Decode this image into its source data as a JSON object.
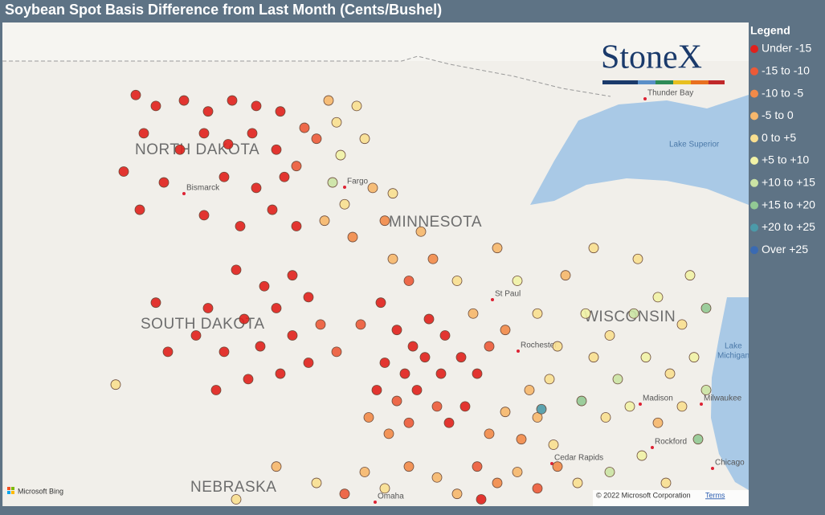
{
  "title": "Soybean Spot Basis Difference from Last Month (Cents/Bushel)",
  "logo": "StoneX",
  "legend": {
    "title": "Legend",
    "classes": [
      {
        "label": "Under -15",
        "color": "#e0201c"
      },
      {
        "label": "-15 to -10",
        "color": "#ec5a38"
      },
      {
        "label": "-10 to -5",
        "color": "#f28a48"
      },
      {
        "label": "-5 to 0",
        "color": "#f6b76c"
      },
      {
        "label": "0 to +5",
        "color": "#f8df90"
      },
      {
        "label": "+5 to +10",
        "color": "#f1f2a6"
      },
      {
        "label": "+10 to +15",
        "color": "#cbe3a4"
      },
      {
        "label": "+15 to +20",
        "color": "#92c994"
      },
      {
        "label": "+20 to +25",
        "color": "#4b9aa9"
      },
      {
        "label": "Over +25",
        "color": "#3a6ab2"
      }
    ]
  },
  "map_labels": [
    "NORTH DAKOTA",
    "SOUTH DAKOTA",
    "MINNESOTA",
    "WISCONSIN",
    "NEBRASKA",
    "Bismarck",
    "Fargo",
    "St Paul",
    "Rochester",
    "Madison",
    "Milwaukee",
    "Rockford",
    "Cedar Rapids",
    "Omaha",
    "Chicago",
    "Thunder Bay",
    "Lake Superior",
    "Lake",
    "Michigan"
  ],
  "attribution": {
    "provider": "Microsoft Bing",
    "copyright": "© 2022 Microsoft Corporation",
    "terms": "Terms"
  },
  "points": [
    {
      "lon": -102.0,
      "lat": 48.6,
      "class": 0
    },
    {
      "lon": -101.5,
      "lat": 48.4,
      "class": 0
    },
    {
      "lon": -100.8,
      "lat": 48.5,
      "class": 0
    },
    {
      "lon": -100.2,
      "lat": 48.3,
      "class": 0
    },
    {
      "lon": -99.6,
      "lat": 48.5,
      "class": 0
    },
    {
      "lon": -99.0,
      "lat": 48.4,
      "class": 0
    },
    {
      "lon": -98.4,
      "lat": 48.3,
      "class": 0
    },
    {
      "lon": -101.8,
      "lat": 47.9,
      "class": 0
    },
    {
      "lon": -100.9,
      "lat": 47.6,
      "class": 0
    },
    {
      "lon": -100.3,
      "lat": 47.9,
      "class": 0
    },
    {
      "lon": -99.7,
      "lat": 47.7,
      "class": 0
    },
    {
      "lon": -99.1,
      "lat": 47.9,
      "class": 0
    },
    {
      "lon": -98.5,
      "lat": 47.6,
      "class": 0
    },
    {
      "lon": -102.3,
      "lat": 47.2,
      "class": 0
    },
    {
      "lon": -101.3,
      "lat": 47.0,
      "class": 0
    },
    {
      "lon": -99.8,
      "lat": 47.1,
      "class": 0
    },
    {
      "lon": -99.0,
      "lat": 46.9,
      "class": 0
    },
    {
      "lon": -98.3,
      "lat": 47.1,
      "class": 0
    },
    {
      "lon": -101.9,
      "lat": 46.5,
      "class": 0
    },
    {
      "lon": -100.3,
      "lat": 46.4,
      "class": 0
    },
    {
      "lon": -99.4,
      "lat": 46.2,
      "class": 0
    },
    {
      "lon": -98.6,
      "lat": 46.5,
      "class": 0
    },
    {
      "lon": -98.0,
      "lat": 46.2,
      "class": 0
    },
    {
      "lon": -97.8,
      "lat": 48.0,
      "class": 1
    },
    {
      "lon": -98.0,
      "lat": 47.3,
      "class": 1
    },
    {
      "lon": -97.2,
      "lat": 48.5,
      "class": 3
    },
    {
      "lon": -97.0,
      "lat": 48.1,
      "class": 4
    },
    {
      "lon": -96.9,
      "lat": 47.5,
      "class": 5
    },
    {
      "lon": -97.1,
      "lat": 47.0,
      "class": 6
    },
    {
      "lon": -96.8,
      "lat": 46.6,
      "class": 4
    },
    {
      "lon": -97.3,
      "lat": 46.3,
      "class": 3
    },
    {
      "lon": -96.6,
      "lat": 46.0,
      "class": 2
    },
    {
      "lon": -96.3,
      "lat": 47.8,
      "class": 4
    },
    {
      "lon": -96.1,
      "lat": 46.9,
      "class": 3
    },
    {
      "lon": -95.8,
      "lat": 46.3,
      "class": 2
    },
    {
      "lon": -97.5,
      "lat": 47.8,
      "class": 1
    },
    {
      "lon": -96.5,
      "lat": 48.4,
      "class": 4
    },
    {
      "lon": -99.5,
      "lat": 45.4,
      "class": 0
    },
    {
      "lon": -98.8,
      "lat": 45.1,
      "class": 0
    },
    {
      "lon": -98.1,
      "lat": 45.3,
      "class": 0
    },
    {
      "lon": -100.2,
      "lat": 44.7,
      "class": 0
    },
    {
      "lon": -99.3,
      "lat": 44.5,
      "class": 0
    },
    {
      "lon": -98.5,
      "lat": 44.7,
      "class": 0
    },
    {
      "lon": -97.7,
      "lat": 44.9,
      "class": 0
    },
    {
      "lon": -100.5,
      "lat": 44.2,
      "class": 0
    },
    {
      "lon": -99.8,
      "lat": 43.9,
      "class": 0
    },
    {
      "lon": -98.9,
      "lat": 44.0,
      "class": 0
    },
    {
      "lon": -98.1,
      "lat": 44.2,
      "class": 0
    },
    {
      "lon": -97.4,
      "lat": 44.4,
      "class": 1
    },
    {
      "lon": -99.2,
      "lat": 43.4,
      "class": 0
    },
    {
      "lon": -98.4,
      "lat": 43.5,
      "class": 0
    },
    {
      "lon": -97.7,
      "lat": 43.7,
      "class": 0
    },
    {
      "lon": -97.0,
      "lat": 43.9,
      "class": 1
    },
    {
      "lon": -101.5,
      "lat": 44.8,
      "class": 0
    },
    {
      "lon": -101.2,
      "lat": 43.9,
      "class": 0
    },
    {
      "lon": -100.0,
      "lat": 43.2,
      "class": 0
    },
    {
      "lon": -102.5,
      "lat": 43.3,
      "class": 4
    },
    {
      "lon": -96.4,
      "lat": 44.4,
      "class": 1
    },
    {
      "lon": -95.9,
      "lat": 44.8,
      "class": 0
    },
    {
      "lon": -95.5,
      "lat": 44.3,
      "class": 0
    },
    {
      "lon": -95.1,
      "lat": 44.0,
      "class": 0
    },
    {
      "lon": -94.7,
      "lat": 44.5,
      "class": 0
    },
    {
      "lon": -94.3,
      "lat": 44.2,
      "class": 0
    },
    {
      "lon": -95.8,
      "lat": 43.7,
      "class": 0
    },
    {
      "lon": -95.3,
      "lat": 43.5,
      "class": 0
    },
    {
      "lon": -94.8,
      "lat": 43.8,
      "class": 0
    },
    {
      "lon": -94.4,
      "lat": 43.5,
      "class": 0
    },
    {
      "lon": -93.9,
      "lat": 43.8,
      "class": 0
    },
    {
      "lon": -96.0,
      "lat": 43.2,
      "class": 0
    },
    {
      "lon": -95.5,
      "lat": 43.0,
      "class": 1
    },
    {
      "lon": -95.0,
      "lat": 43.2,
      "class": 0
    },
    {
      "lon": -94.5,
      "lat": 42.9,
      "class": 1
    },
    {
      "lon": -96.2,
      "lat": 42.7,
      "class": 2
    },
    {
      "lon": -95.7,
      "lat": 42.4,
      "class": 2
    },
    {
      "lon": -95.2,
      "lat": 42.6,
      "class": 1
    },
    {
      "lon": -94.2,
      "lat": 42.6,
      "class": 0
    },
    {
      "lon": -93.8,
      "lat": 42.9,
      "class": 0
    },
    {
      "lon": -93.5,
      "lat": 43.5,
      "class": 0
    },
    {
      "lon": -93.2,
      "lat": 44.0,
      "class": 1
    },
    {
      "lon": -95.2,
      "lat": 45.2,
      "class": 1
    },
    {
      "lon": -94.6,
      "lat": 45.6,
      "class": 2
    },
    {
      "lon": -95.6,
      "lat": 45.6,
      "class": 3
    },
    {
      "lon": -94.0,
      "lat": 45.2,
      "class": 4
    },
    {
      "lon": -93.6,
      "lat": 44.6,
      "class": 3
    },
    {
      "lon": -94.9,
      "lat": 46.1,
      "class": 3
    },
    {
      "lon": -95.6,
      "lat": 46.8,
      "class": 4
    },
    {
      "lon": -93.2,
      "lat": 42.4,
      "class": 2
    },
    {
      "lon": -92.8,
      "lat": 42.8,
      "class": 3
    },
    {
      "lon": -92.4,
      "lat": 42.3,
      "class": 2
    },
    {
      "lon": -92.0,
      "lat": 42.7,
      "class": 3
    },
    {
      "lon": -91.6,
      "lat": 42.2,
      "class": 4
    },
    {
      "lon": -93.5,
      "lat": 41.8,
      "class": 1
    },
    {
      "lon": -93.0,
      "lat": 41.5,
      "class": 2
    },
    {
      "lon": -92.5,
      "lat": 41.7,
      "class": 3
    },
    {
      "lon": -92.0,
      "lat": 41.4,
      "class": 1
    },
    {
      "lon": -91.5,
      "lat": 41.8,
      "class": 2
    },
    {
      "lon": -91.0,
      "lat": 41.5,
      "class": 4
    },
    {
      "lon": -94.5,
      "lat": 41.6,
      "class": 3
    },
    {
      "lon": -95.2,
      "lat": 41.8,
      "class": 2
    },
    {
      "lon": -95.8,
      "lat": 41.4,
      "class": 4
    },
    {
      "lon": -94.0,
      "lat": 41.3,
      "class": 3
    },
    {
      "lon": -93.4,
      "lat": 41.2,
      "class": 0
    },
    {
      "lon": -92.2,
      "lat": 43.2,
      "class": 3
    },
    {
      "lon": -91.7,
      "lat": 43.4,
      "class": 4
    },
    {
      "lon": -91.9,
      "lat": 42.85,
      "class": 8
    },
    {
      "lon": -90.8,
      "lat": 44.6,
      "class": 5
    },
    {
      "lon": -90.2,
      "lat": 44.2,
      "class": 4
    },
    {
      "lon": -89.6,
      "lat": 44.6,
      "class": 6
    },
    {
      "lon": -89.0,
      "lat": 44.9,
      "class": 5
    },
    {
      "lon": -88.4,
      "lat": 44.4,
      "class": 4
    },
    {
      "lon": -87.8,
      "lat": 44.7,
      "class": 7
    },
    {
      "lon": -90.6,
      "lat": 43.8,
      "class": 4
    },
    {
      "lon": -90.0,
      "lat": 43.4,
      "class": 6
    },
    {
      "lon": -89.3,
      "lat": 43.8,
      "class": 5
    },
    {
      "lon": -88.7,
      "lat": 43.5,
      "class": 4
    },
    {
      "lon": -88.1,
      "lat": 43.8,
      "class": 5
    },
    {
      "lon": -90.9,
      "lat": 43.0,
      "class": 7
    },
    {
      "lon": -90.3,
      "lat": 42.7,
      "class": 4
    },
    {
      "lon": -89.7,
      "lat": 42.9,
      "class": 5
    },
    {
      "lon": -89.0,
      "lat": 42.6,
      "class": 3
    },
    {
      "lon": -88.4,
      "lat": 42.9,
      "class": 4
    },
    {
      "lon": -89.5,
      "lat": 45.6,
      "class": 4
    },
    {
      "lon": -88.2,
      "lat": 45.3,
      "class": 5
    },
    {
      "lon": -91.3,
      "lat": 45.3,
      "class": 3
    },
    {
      "lon": -90.6,
      "lat": 45.8,
      "class": 4
    },
    {
      "lon": -87.8,
      "lat": 43.2,
      "class": 6
    },
    {
      "lon": -88.0,
      "lat": 42.3,
      "class": 7
    },
    {
      "lon": -89.4,
      "lat": 42.0,
      "class": 5
    },
    {
      "lon": -90.2,
      "lat": 41.7,
      "class": 6
    },
    {
      "lon": -88.8,
      "lat": 41.5,
      "class": 4
    },
    {
      "lon": -97.5,
      "lat": 41.5,
      "class": 4
    },
    {
      "lon": -98.5,
      "lat": 41.8,
      "class": 3
    },
    {
      "lon": -96.8,
      "lat": 41.3,
      "class": 1
    },
    {
      "lon": -96.3,
      "lat": 41.7,
      "class": 3
    },
    {
      "lon": -99.5,
      "lat": 41.2,
      "class": 4
    },
    {
      "lon": -92.5,
      "lat": 45.2,
      "class": 5
    },
    {
      "lon": -93.0,
      "lat": 45.8,
      "class": 3
    },
    {
      "lon": -92.0,
      "lat": 44.6,
      "class": 4
    },
    {
      "lon": -91.5,
      "lat": 44.0,
      "class": 4
    },
    {
      "lon": -92.8,
      "lat": 44.3,
      "class": 2
    }
  ]
}
